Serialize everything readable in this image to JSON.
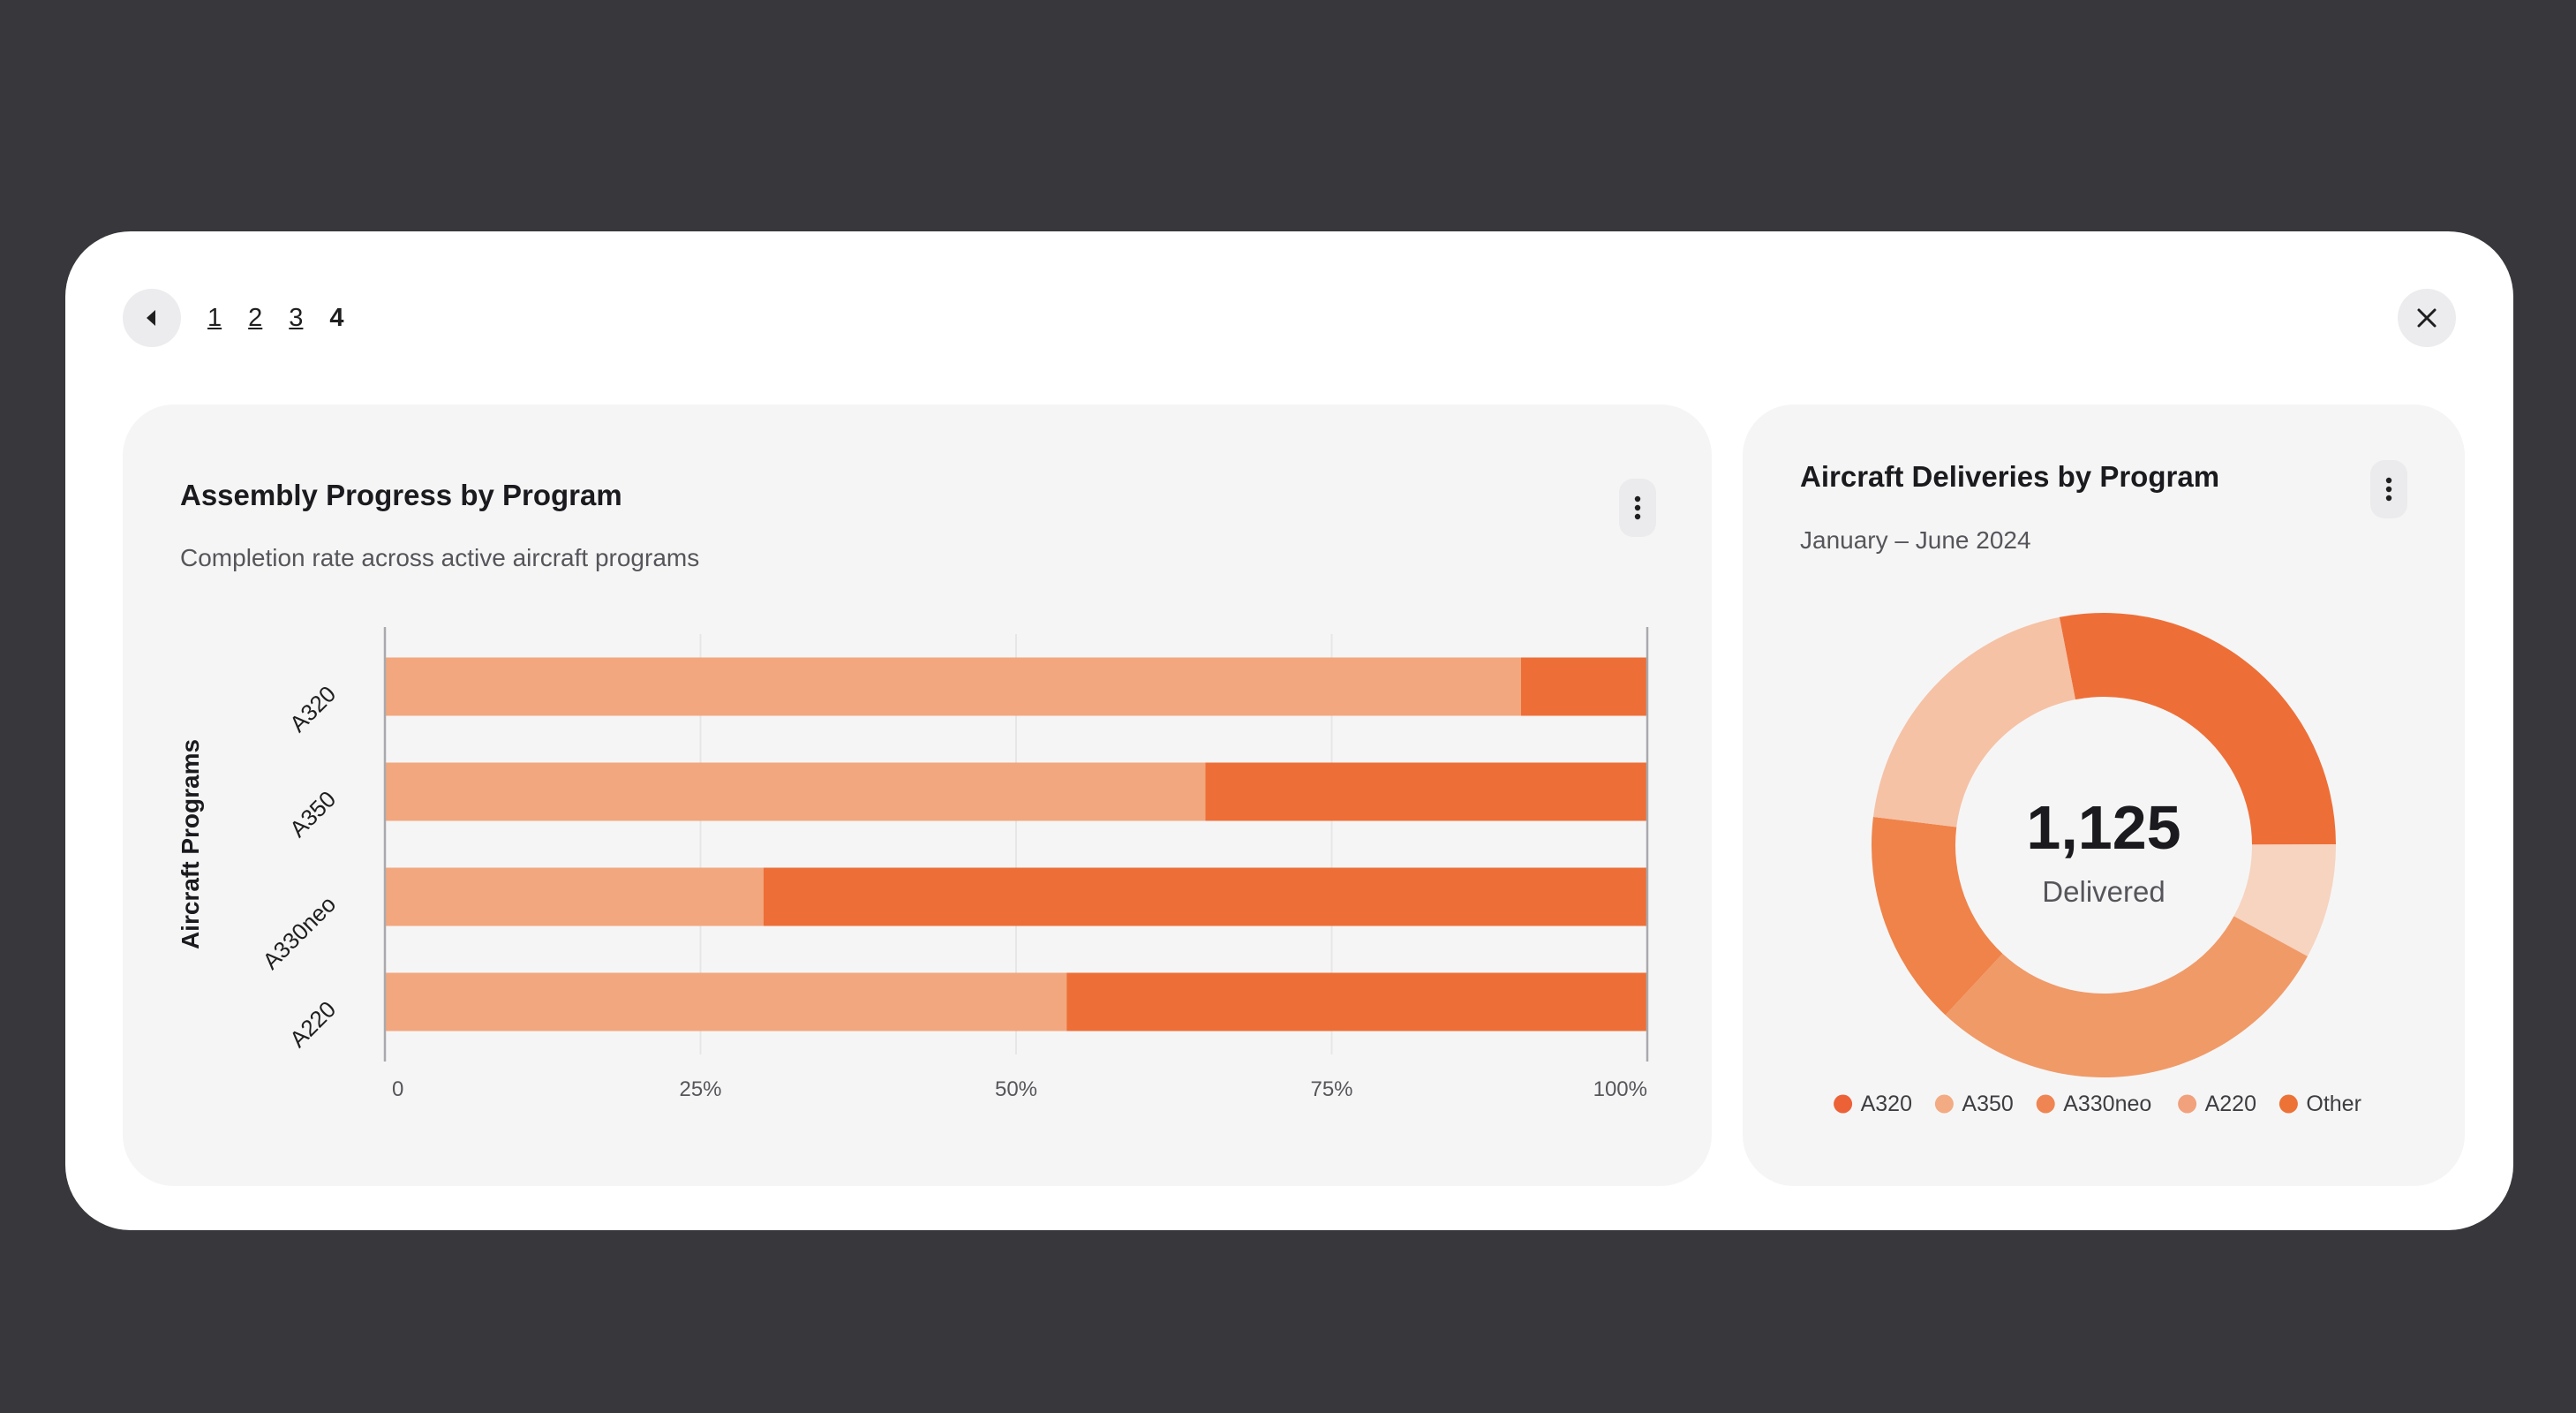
{
  "pager": {
    "pages": [
      "1",
      "2",
      "3",
      "4"
    ],
    "current": "4"
  },
  "colors": {
    "background": "#38373c",
    "bar_light": "#f2a77e",
    "bar_dark": "#ed6f37"
  },
  "icons": {
    "back": "caret-left-icon",
    "close": "close-icon",
    "menu": "more-vertical-icon"
  },
  "assembly": {
    "title": "Assembly Progress by Program",
    "subtitle": "Completion rate across active aircraft programs"
  },
  "deliveries": {
    "title": "Aircraft Deliveries by Program",
    "subtitle": "January – June 2024",
    "total": "1,125",
    "total_label": "Delivered"
  },
  "chart_data": [
    {
      "type": "bar",
      "orientation": "horizontal",
      "stacked": true,
      "ylabel": "Aircraft Programs",
      "categories": [
        "A320",
        "A350",
        "A330neo",
        "A220"
      ],
      "series": [
        {
          "values": [
            90,
            65,
            30,
            54
          ],
          "color": "#f2a77e"
        },
        {
          "values": [
            10,
            35,
            70,
            46
          ],
          "color": "#ed6f37"
        }
      ],
      "xlim": [
        0,
        100
      ],
      "xticks": [
        "0",
        "25%",
        "50%",
        "75%",
        "100%"
      ],
      "grid": true
    },
    {
      "type": "pie",
      "donut": true,
      "categories": [
        "A320",
        "A350",
        "A330neo",
        "A220",
        "Other"
      ],
      "values": [
        28,
        8,
        29,
        15,
        20
      ],
      "slice_colors": [
        "#ed6f37",
        "#f6d4c0",
        "#f09a68",
        "#ef834a",
        "#f5c2a6"
      ],
      "legend_colors": [
        "#ed6137",
        "#f2ab82",
        "#ef8552",
        "#f1a17c",
        "#ed7236"
      ],
      "legend": "bottom"
    }
  ]
}
